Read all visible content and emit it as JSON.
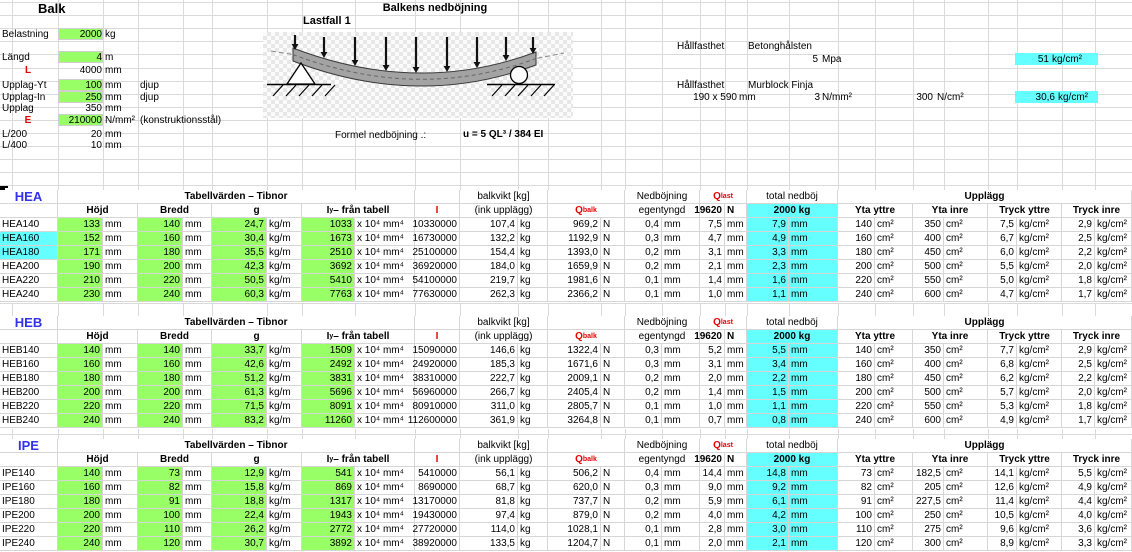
{
  "titles": {
    "sheet": "Balk",
    "main": "Balkens nedböjning",
    "lastfall": "Lastfall 1",
    "formula_label": "Formel nedböjning .:",
    "formula": "u = 5 QL³ / 384 EI"
  },
  "params": [
    {
      "label": "Belastning",
      "value": "2000",
      "unit": "kg",
      "note": "",
      "green": true,
      "red": false
    },
    {
      "label": "Längd",
      "value": "4",
      "unit": "m",
      "note": "",
      "green": true,
      "red": false
    },
    {
      "label": "L",
      "value": "4000",
      "unit": "mm",
      "note": "",
      "green": false,
      "red": true
    },
    {
      "label": "Upplag-Yt",
      "value": "100",
      "unit": "mm",
      "note": "djup",
      "green": true,
      "red": false
    },
    {
      "label": "Upplag-In",
      "value": "250",
      "unit": "mm",
      "note": "djup",
      "green": true,
      "red": false
    },
    {
      "label": "Upplag",
      "value": "350",
      "unit": "mm",
      "note": "",
      "green": false,
      "red": false
    },
    {
      "label": "E",
      "value": "210000",
      "unit": "N/mm²",
      "note": "(konstruktionsstål)",
      "green": true,
      "red": true
    },
    {
      "label": "L/200",
      "value": "20",
      "unit": "mm",
      "note": "",
      "green": false,
      "red": false
    },
    {
      "label": "L/400",
      "value": "10",
      "unit": "mm",
      "note": "",
      "green": false,
      "red": false
    }
  ],
  "strength": {
    "label1": "Hållfasthet",
    "type1": "Betonghålsten",
    "val1": "5",
    "unit1": "Mpa",
    "res1": "51",
    "res1_unit": "kg/cm²",
    "label2": "Hållfasthet",
    "type2": "Murblock Finja",
    "dim2": "190 x 590",
    "dim2_unit": "mm",
    "val2": "3",
    "unit2": "N/mm²",
    "val2b": "300",
    "unit2b": "N/cm²",
    "res2": "30,6",
    "res2_unit": "kg/cm²"
  },
  "headers": {
    "tabellvarden": "Tabellvärden – Tibnor",
    "hojd": "Höjd",
    "bredd": "Bredd",
    "g": "g",
    "iy_main": "I",
    "iy_sub": "y",
    "iy_rest": " – från tabell",
    "I": "I",
    "balkvikt": "balkvikt [kg]",
    "ink": "(ink upplägg)",
    "qbalk_main": "Q",
    "qbalk_sub": "balk",
    "qlast_main": "Q",
    "qlast_sub": "last",
    "nedbojning": "Nedböjning",
    "egentyngd": "egentyngd",
    "qlast_val": "19620",
    "qlast_unit": "N",
    "total": "total nedböj",
    "total_val": "2000 kg",
    "upplagg": "Upplägg",
    "yta_yttre": "Yta yttre",
    "yta_inre": "Yta inre",
    "tryck_yttre": "Tryck yttre",
    "tryck_inre": "Tryck inre"
  },
  "units": {
    "hojd": "mm",
    "bredd": "mm",
    "g": "kg/m",
    "iy": "x 10⁴ mm⁴",
    "balkvikt": "kg",
    "qbalk": "N",
    "egen": "mm",
    "qlast": "mm",
    "total": "mm",
    "yta": "cm²",
    "tryck": "kg/cm²"
  },
  "tables": [
    {
      "title": "HEA",
      "rows": [
        {
          "name": "HEA140",
          "hl": false,
          "hojd": "133",
          "bredd": "140",
          "g": "24,7",
          "iy": "1033",
          "I": "10330000",
          "balkvikt": "107,4",
          "qbalk": "969,2",
          "egen": "0,4",
          "qlast": "7,5",
          "total": "7,9",
          "yta_yttre": "140",
          "yta_inre": "350",
          "tryck_yttre": "7,5",
          "tryck_inre": "2,9"
        },
        {
          "name": "HEA160",
          "hl": true,
          "hojd": "152",
          "bredd": "160",
          "g": "30,4",
          "iy": "1673",
          "I": "16730000",
          "balkvikt": "132,2",
          "qbalk": "1192,9",
          "egen": "0,3",
          "qlast": "4,7",
          "total": "4,9",
          "yta_yttre": "160",
          "yta_inre": "400",
          "tryck_yttre": "6,7",
          "tryck_inre": "2,5"
        },
        {
          "name": "HEA180",
          "hl": true,
          "hojd": "171",
          "bredd": "180",
          "g": "35,5",
          "iy": "2510",
          "I": "25100000",
          "balkvikt": "154,4",
          "qbalk": "1393,0",
          "egen": "0,2",
          "qlast": "3,1",
          "total": "3,3",
          "yta_yttre": "180",
          "yta_inre": "450",
          "tryck_yttre": "6,0",
          "tryck_inre": "2,2"
        },
        {
          "name": "HEA200",
          "hl": false,
          "hojd": "190",
          "bredd": "200",
          "g": "42,3",
          "iy": "3692",
          "I": "36920000",
          "balkvikt": "184,0",
          "qbalk": "1659,9",
          "egen": "0,2",
          "qlast": "2,1",
          "total": "2,3",
          "yta_yttre": "200",
          "yta_inre": "500",
          "tryck_yttre": "5,5",
          "tryck_inre": "2,0"
        },
        {
          "name": "HEA220",
          "hl": false,
          "hojd": "210",
          "bredd": "220",
          "g": "50,5",
          "iy": "5410",
          "I": "54100000",
          "balkvikt": "219,7",
          "qbalk": "1981,6",
          "egen": "0,1",
          "qlast": "1,4",
          "total": "1,6",
          "yta_yttre": "220",
          "yta_inre": "550",
          "tryck_yttre": "5,0",
          "tryck_inre": "1,8"
        },
        {
          "name": "HEA240",
          "hl": false,
          "hojd": "230",
          "bredd": "240",
          "g": "60,3",
          "iy": "7763",
          "I": "77630000",
          "balkvikt": "262,3",
          "qbalk": "2366,2",
          "egen": "0,1",
          "qlast": "1,0",
          "total": "1,1",
          "yta_yttre": "240",
          "yta_inre": "600",
          "tryck_yttre": "4,7",
          "tryck_inre": "1,7"
        }
      ]
    },
    {
      "title": "HEB",
      "rows": [
        {
          "name": "HEB140",
          "hl": false,
          "hojd": "140",
          "bredd": "140",
          "g": "33,7",
          "iy": "1509",
          "I": "15090000",
          "balkvikt": "146,6",
          "qbalk": "1322,4",
          "egen": "0,3",
          "qlast": "5,2",
          "total": "5,5",
          "yta_yttre": "140",
          "yta_inre": "350",
          "tryck_yttre": "7,7",
          "tryck_inre": "2,9"
        },
        {
          "name": "HEB160",
          "hl": false,
          "hojd": "160",
          "bredd": "160",
          "g": "42,6",
          "iy": "2492",
          "I": "24920000",
          "balkvikt": "185,3",
          "qbalk": "1671,6",
          "egen": "0,3",
          "qlast": "3,1",
          "total": "3,4",
          "yta_yttre": "160",
          "yta_inre": "400",
          "tryck_yttre": "6,8",
          "tryck_inre": "2,5"
        },
        {
          "name": "HEB180",
          "hl": false,
          "hojd": "180",
          "bredd": "180",
          "g": "51,2",
          "iy": "3831",
          "I": "38310000",
          "balkvikt": "222,7",
          "qbalk": "2009,1",
          "egen": "0,2",
          "qlast": "2,0",
          "total": "2,2",
          "yta_yttre": "180",
          "yta_inre": "450",
          "tryck_yttre": "6,2",
          "tryck_inre": "2,2"
        },
        {
          "name": "HEB200",
          "hl": false,
          "hojd": "200",
          "bredd": "200",
          "g": "61,3",
          "iy": "5696",
          "I": "56960000",
          "balkvikt": "266,7",
          "qbalk": "2405,4",
          "egen": "0,2",
          "qlast": "1,4",
          "total": "1,5",
          "yta_yttre": "200",
          "yta_inre": "500",
          "tryck_yttre": "5,7",
          "tryck_inre": "2,0"
        },
        {
          "name": "HEB220",
          "hl": false,
          "hojd": "220",
          "bredd": "220",
          "g": "71,5",
          "iy": "8091",
          "I": "80910000",
          "balkvikt": "311,0",
          "qbalk": "2805,7",
          "egen": "0,1",
          "qlast": "1,0",
          "total": "1,1",
          "yta_yttre": "220",
          "yta_inre": "550",
          "tryck_yttre": "5,3",
          "tryck_inre": "1,8"
        },
        {
          "name": "HEB240",
          "hl": false,
          "hojd": "240",
          "bredd": "240",
          "g": "83,2",
          "iy": "11260",
          "I": "112600000",
          "balkvikt": "361,9",
          "qbalk": "3264,8",
          "egen": "0,1",
          "qlast": "0,7",
          "total": "0,8",
          "yta_yttre": "240",
          "yta_inre": "600",
          "tryck_yttre": "4,9",
          "tryck_inre": "1,7"
        }
      ]
    },
    {
      "title": "IPE",
      "rows": [
        {
          "name": "IPE140",
          "hl": false,
          "hojd": "140",
          "bredd": "73",
          "g": "12,9",
          "iy": "541",
          "I": "5410000",
          "balkvikt": "56,1",
          "qbalk": "506,2",
          "egen": "0,4",
          "qlast": "14,4",
          "total": "14,8",
          "yta_yttre": "73",
          "yta_inre": "182,5",
          "tryck_yttre": "14,1",
          "tryck_inre": "5,5"
        },
        {
          "name": "IPE160",
          "hl": false,
          "hojd": "160",
          "bredd": "82",
          "g": "15,8",
          "iy": "869",
          "I": "8690000",
          "balkvikt": "68,7",
          "qbalk": "620,0",
          "egen": "0,3",
          "qlast": "9,0",
          "total": "9,2",
          "yta_yttre": "82",
          "yta_inre": "205",
          "tryck_yttre": "12,6",
          "tryck_inre": "4,9"
        },
        {
          "name": "IPE180",
          "hl": false,
          "hojd": "180",
          "bredd": "91",
          "g": "18,8",
          "iy": "1317",
          "I": "13170000",
          "balkvikt": "81,8",
          "qbalk": "737,7",
          "egen": "0,2",
          "qlast": "5,9",
          "total": "6,1",
          "yta_yttre": "91",
          "yta_inre": "227,5",
          "tryck_yttre": "11,4",
          "tryck_inre": "4,4"
        },
        {
          "name": "IPE200",
          "hl": false,
          "hojd": "200",
          "bredd": "100",
          "g": "22,4",
          "iy": "1943",
          "I": "19430000",
          "balkvikt": "97,4",
          "qbalk": "879,0",
          "egen": "0,2",
          "qlast": "4,0",
          "total": "4,2",
          "yta_yttre": "100",
          "yta_inre": "250",
          "tryck_yttre": "10,5",
          "tryck_inre": "4,0"
        },
        {
          "name": "IPE220",
          "hl": false,
          "hojd": "220",
          "bredd": "110",
          "g": "26,2",
          "iy": "2772",
          "I": "27720000",
          "balkvikt": "114,0",
          "qbalk": "1028,1",
          "egen": "0,1",
          "qlast": "2,8",
          "total": "3,0",
          "yta_yttre": "110",
          "yta_inre": "275",
          "tryck_yttre": "9,6",
          "tryck_inre": "3,6"
        },
        {
          "name": "IPE240",
          "hl": false,
          "hojd": "240",
          "bredd": "120",
          "g": "30,7",
          "iy": "3892",
          "I": "38920000",
          "balkvikt": "133,5",
          "qbalk": "1204,7",
          "egen": "0,1",
          "qlast": "2,0",
          "total": "2,1",
          "yta_yttre": "120",
          "yta_inre": "300",
          "tryck_yttre": "8,9",
          "tryck_inre": "3,3"
        }
      ]
    }
  ],
  "colors": {
    "green": "#99ff66",
    "cyan": "#66ffff",
    "red": "#e60000",
    "blue": "#3333ee",
    "grid": "#d6d6d6"
  }
}
